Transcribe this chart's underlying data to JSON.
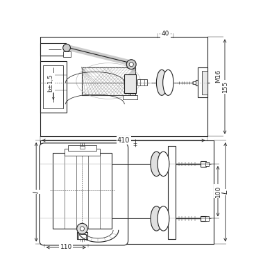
{
  "bg": "#ffffff",
  "lc": "#222222",
  "gray1": "#aaaaaa",
  "gray2": "#cccccc",
  "gray3": "#888888",
  "annotations": {
    "d40": "40",
    "d155": "155",
    "dM16": "M16",
    "d410": "410",
    "db": "b±1,5",
    "d110": "110",
    "d100": "100",
    "dl": "l",
    "dL": "L"
  }
}
